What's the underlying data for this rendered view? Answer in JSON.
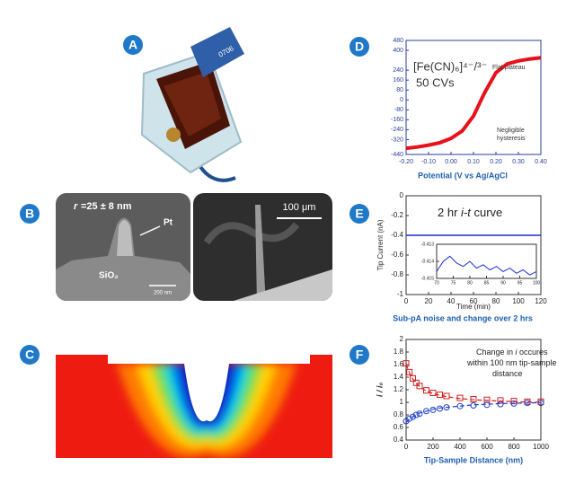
{
  "panel_labels": [
    "A",
    "B",
    "C",
    "D",
    "E",
    "F"
  ],
  "panel_a": {
    "tag_text": "0706"
  },
  "panel_b": {
    "radius_symbol": "r",
    "radius_value": "=25 ± 8 nm",
    "pt_label": "Pt",
    "sio2_label": "SiO₂",
    "scale_left": "200 nm",
    "scale_right": "100 μm"
  },
  "chart_data": [
    {
      "type": "line",
      "annotation": "[Fe(CN)₆]⁴⁻/³⁻",
      "annotation2": "50 CVs",
      "note_plateau": "Flat plateau",
      "note_hysteresis": [
        "Negligible",
        "hysteresis"
      ],
      "x_label": "Potential (V vs Ag/AgCl",
      "xlim": [
        -0.2,
        0.4
      ],
      "xticks": [
        {
          "value": -0.2,
          "label": "-0.20"
        },
        {
          "value": -0.1,
          "label": "-0.10"
        },
        {
          "value": 0,
          "label": "0.00"
        },
        {
          "value": 0.1,
          "label": "0.10"
        },
        {
          "value": 0.2,
          "label": "0.20"
        },
        {
          "value": 0.3,
          "label": "0.30"
        },
        {
          "value": 0.4,
          "label": "0.40"
        }
      ],
      "ylim": [
        -440,
        480
      ],
      "yticks": [
        480,
        400,
        240,
        160,
        80,
        0,
        -80,
        -160,
        -240,
        -320,
        -440
      ],
      "x": [
        -0.2,
        -0.15,
        -0.1,
        -0.05,
        0,
        0.05,
        0.1,
        0.15,
        0.2,
        0.25,
        0.3,
        0.35,
        0.4
      ],
      "series": [
        {
          "color": "#e8101a",
          "values": [
            -390,
            -380,
            -365,
            -345,
            -310,
            -250,
            -130,
            60,
            220,
            290,
            315,
            330,
            340
          ]
        }
      ]
    },
    {
      "type": "line",
      "annotation_parts": [
        "2 hr ",
        "i-t",
        " curve"
      ],
      "y_label": "Tip Current (nA)",
      "x_label": "Time (min)",
      "caption": "Sub-pA noise and change over 2 hrs",
      "xlim": [
        0,
        120
      ],
      "xticks": [
        0,
        20,
        40,
        60,
        80,
        100,
        120
      ],
      "ylim": [
        -1,
        0
      ],
      "yticks": [
        0,
        -0.2,
        -0.4,
        -0.6,
        -0.8,
        -1
      ],
      "x": [
        0,
        120
      ],
      "series": [
        {
          "color": "#1a2fd6",
          "values": [
            -0.4,
            -0.4
          ]
        }
      ],
      "inset": {
        "xlim": [
          70,
          100
        ],
        "xticks": [
          70,
          75,
          80,
          85,
          90,
          95,
          100
        ],
        "ylim": [
          -0.415,
          -0.413
        ],
        "yticks": [
          -0.413,
          -0.414,
          -0.415
        ],
        "x": [
          70,
          72,
          74,
          76,
          78,
          80,
          82,
          84,
          86,
          88,
          90,
          92,
          94,
          96,
          98,
          100
        ],
        "series": [
          {
            "color": "#1a2fd6",
            "values": [
              -0.4146,
              -0.414,
              -0.4137,
              -0.4141,
              -0.4143,
              -0.414,
              -0.4144,
              -0.4142,
              -0.4145,
              -0.4143,
              -0.4146,
              -0.4144,
              -0.4147,
              -0.4145,
              -0.4148,
              -0.4146
            ]
          }
        ]
      }
    },
    {
      "type": "scatter",
      "y_label": "i / i₀",
      "x_label": "Tip-Sample Distance (nm)",
      "annotation": [
        [
          "Change in ",
          "i",
          " occures"
        ],
        [
          "within 100 nm tip-sample"
        ],
        [
          "distance"
        ]
      ],
      "xlim": [
        0,
        1000
      ],
      "xticks": [
        0,
        200,
        400,
        600,
        800,
        1000
      ],
      "ylim": [
        0.4,
        2
      ],
      "yticks": [
        0.4,
        0.6,
        0.8,
        1,
        1.2,
        1.4,
        1.6,
        1.8,
        2
      ],
      "x": [
        0,
        25,
        50,
        75,
        100,
        150,
        200,
        250,
        300,
        400,
        500,
        600,
        700,
        800,
        900,
        1000
      ],
      "series": [
        {
          "color": "#d42020",
          "marker": "square",
          "values": [
            1.62,
            1.48,
            1.38,
            1.31,
            1.26,
            1.19,
            1.15,
            1.12,
            1.1,
            1.07,
            1.05,
            1.04,
            1.03,
            1.02,
            1.01,
            1.01
          ]
        },
        {
          "color": "#2040c8",
          "marker": "circle",
          "values": [
            0.7,
            0.74,
            0.77,
            0.8,
            0.82,
            0.86,
            0.88,
            0.9,
            0.92,
            0.94,
            0.95,
            0.96,
            0.97,
            0.98,
            0.99,
            0.99
          ]
        },
        {
          "color": "#d42020",
          "line_style": "dashed",
          "values": [
            1.6,
            1.47,
            1.37,
            1.3,
            1.25,
            1.18,
            1.14,
            1.11,
            1.09,
            1.06,
            1.04,
            1.03,
            1.02,
            1.01,
            1.005,
            1.0
          ]
        },
        {
          "color": "#2040c8",
          "line_style": "dashed",
          "values": [
            0.68,
            0.73,
            0.77,
            0.8,
            0.83,
            0.86,
            0.89,
            0.91,
            0.92,
            0.94,
            0.96,
            0.97,
            0.98,
            0.985,
            0.99,
            0.995
          ]
        }
      ]
    }
  ]
}
